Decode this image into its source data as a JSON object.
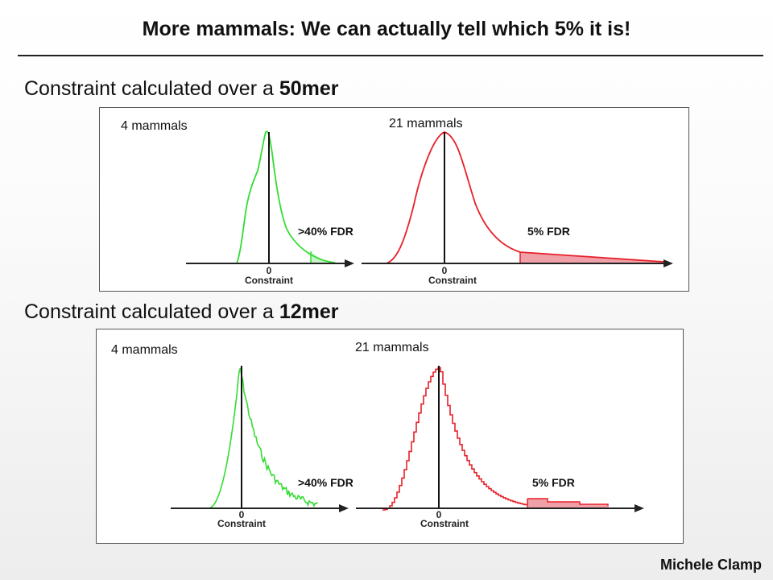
{
  "slide": {
    "title": "More mammals: We can actually tell which 5% it is!",
    "author": "Michele Clamp"
  },
  "sections": [
    {
      "heading_prefix": "Constraint calculated over a ",
      "heading_bold": "50mer",
      "left_panel": {
        "label": "4 mammals",
        "fdr_label": ">40% FDR",
        "axis_tick": "0",
        "axis_label": "Constraint",
        "color": "#33dd33"
      },
      "right_panel": {
        "label": "21 mammals",
        "fdr_label": "5% FDR",
        "axis_tick": "0",
        "axis_label": "Constraint",
        "color": "#e8202a",
        "shade": "#f0a0a8"
      }
    },
    {
      "heading_prefix": "Constraint calculated over a ",
      "heading_bold": "12mer",
      "left_panel": {
        "label": "4 mammals",
        "fdr_label": ">40% FDR",
        "axis_tick": "0",
        "axis_label": "Constraint",
        "color": "#33dd33"
      },
      "right_panel": {
        "label": "21 mammals",
        "fdr_label": "5% FDR",
        "axis_tick": "0",
        "axis_label": "Constraint",
        "color": "#e8202a",
        "shade": "#f0a0a8"
      }
    }
  ]
}
